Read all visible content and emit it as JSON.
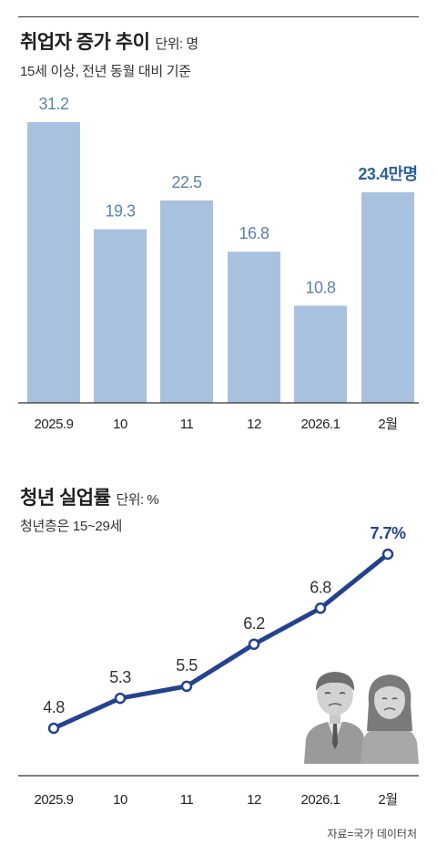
{
  "employment": {
    "title": "취업자 증가 추이",
    "unit": "단위: 명",
    "subtitle": "15세 이상, 전년 동월 대비 기준",
    "highlight_label": "23.4만명"
  },
  "unemployment": {
    "title": "청년 실업률",
    "unit": "단위: %",
    "subtitle": "청년층은 15~29세",
    "highlight_label": "7.7%"
  },
  "source": "자료=국가 데이터처",
  "colors": {
    "bar": "#a8c1df",
    "bar_label": "#5a84ad",
    "highlight_bar_label": "#2c5ea0",
    "line": "#24428f",
    "highlight_line_label": "#24428f"
  },
  "chart_data": [
    {
      "type": "bar",
      "title": "취업자 증가 추이",
      "categories": [
        "2025.9",
        "10",
        "11",
        "12",
        "2026.1",
        "2월"
      ],
      "values": [
        31.2,
        19.3,
        22.5,
        16.8,
        10.8,
        23.4
      ],
      "value_labels": [
        "31.2",
        "19.3",
        "22.5",
        "16.8",
        "10.8",
        "23.4만명"
      ],
      "ylim": [
        0,
        31.2
      ],
      "grid": false
    },
    {
      "type": "line",
      "title": "청년 실업률",
      "categories": [
        "2025.9",
        "10",
        "11",
        "12",
        "2026.1",
        "2월"
      ],
      "values": [
        4.8,
        5.3,
        5.5,
        6.2,
        6.8,
        7.7
      ],
      "value_labels": [
        "4.8",
        "5.3",
        "5.5",
        "6.2",
        "6.8",
        "7.7%"
      ],
      "grid": false
    }
  ]
}
